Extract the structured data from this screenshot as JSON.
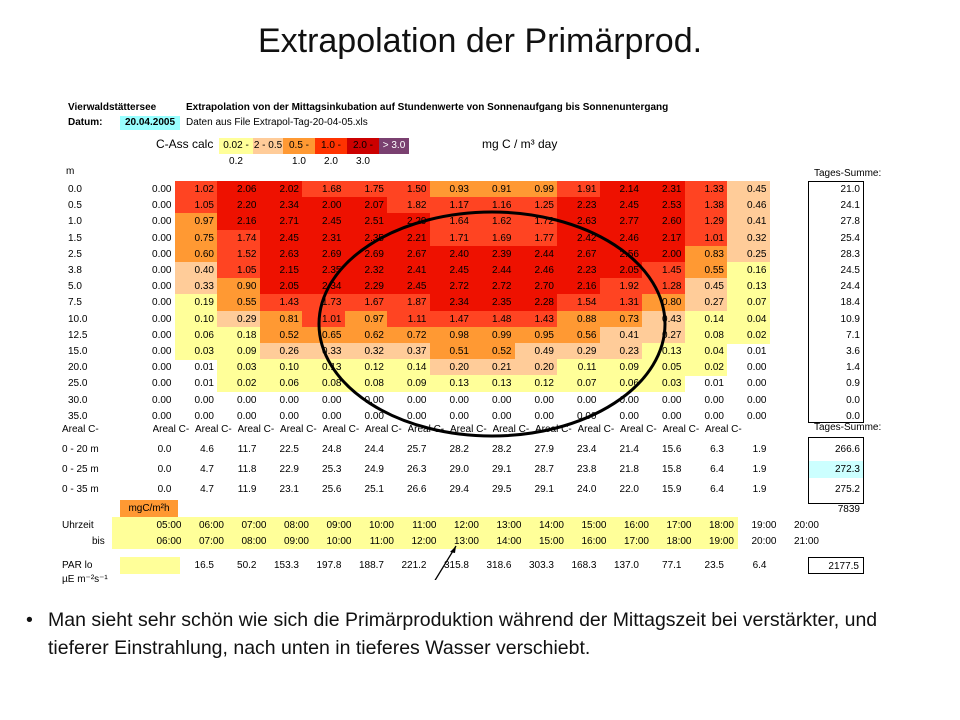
{
  "slide": {
    "title": "Extrapolation der Primärprod.",
    "bullet": "Man sieht sehr schön wie sich die Primärproduktion während der Mittagszeit bei verstärkter, und tieferer Einstrahlung, nach unten in tieferes Wasser verschiebt."
  },
  "sheet": {
    "lake_label": "Vierwaldstättersee",
    "title": "Extrapolation von der Mittagsinkubation auf Stundenwerte von Sonnenaufgang bis Sonnenuntergang",
    "date_label": "Datum:",
    "date_value": "20.04.2005",
    "file_label": "Daten aus File  Extrapol-Tag-20-04-05.xls",
    "cass_label": "C-Ass calc",
    "unit_label": "mg C / m³ day",
    "legend": [
      {
        "text": "0.02 - 0.2",
        "color": "#ffff99"
      },
      {
        "text": "2 - 0.5",
        "color": "#ffcc99"
      },
      {
        "text": "0.5 - 1.0",
        "color": "#ff9933"
      },
      {
        "text": "1.0 - 2.0",
        "color": "#ff3300"
      },
      {
        "text": "2.0 - 3.0",
        "color": "#cc0000"
      },
      {
        "text": "> 3.0",
        "color": "#7a4070"
      }
    ],
    "depth_header": "m",
    "tages_summe_label": "Tages-Summe:",
    "rows": [
      {
        "depth": "0.0",
        "vals": [
          "0.00",
          "1.02",
          "2.06",
          "2.02",
          "1.68",
          "1.75",
          "1.50",
          "0.93",
          "0.91",
          "0.99",
          "1.91",
          "2.14",
          "2.31",
          "1.33",
          "0.45"
        ],
        "sum": "21.0"
      },
      {
        "depth": "0.5",
        "vals": [
          "0.00",
          "1.05",
          "2.20",
          "2.34",
          "2.00",
          "2.07",
          "1.82",
          "1.17",
          "1.16",
          "1.25",
          "2.23",
          "2.45",
          "2.53",
          "1.38",
          "0.46"
        ],
        "sum": "24.1"
      },
      {
        "depth": "1.0",
        "vals": [
          "0.00",
          "0.97",
          "2.16",
          "2.71",
          "2.45",
          "2.51",
          "2.29",
          "1.64",
          "1.62",
          "1.72",
          "2.63",
          "2.77",
          "2.60",
          "1.29",
          "0.41"
        ],
        "sum": "27.8"
      },
      {
        "depth": "1.5",
        "vals": [
          "0.00",
          "0.75",
          "1.74",
          "2.45",
          "2.31",
          "2.35",
          "2.21",
          "1.71",
          "1.69",
          "1.77",
          "2.42",
          "2.46",
          "2.17",
          "1.01",
          "0.32"
        ],
        "sum": "25.4"
      },
      {
        "depth": "2.5",
        "vals": [
          "0.00",
          "0.60",
          "1.52",
          "2.63",
          "2.69",
          "2.69",
          "2.67",
          "2.40",
          "2.39",
          "2.44",
          "2.67",
          "2.56",
          "2.00",
          "0.83",
          "0.25"
        ],
        "sum": "28.3"
      },
      {
        "depth": "3.8",
        "vals": [
          "0.00",
          "0.40",
          "1.05",
          "2.15",
          "2.35",
          "2.32",
          "2.41",
          "2.45",
          "2.44",
          "2.46",
          "2.23",
          "2.05",
          "1.45",
          "0.55",
          "0.16"
        ],
        "sum": "24.5"
      },
      {
        "depth": "5.0",
        "vals": [
          "0.00",
          "0.33",
          "0.90",
          "2.05",
          "2.34",
          "2.29",
          "2.45",
          "2.72",
          "2.72",
          "2.70",
          "2.16",
          "1.92",
          "1.28",
          "0.45",
          "0.13"
        ],
        "sum": "24.4"
      },
      {
        "depth": "7.5",
        "vals": [
          "0.00",
          "0.19",
          "0.55",
          "1.43",
          "1.73",
          "1.67",
          "1.87",
          "2.34",
          "2.35",
          "2.28",
          "1.54",
          "1.31",
          "0.80",
          "0.27",
          "0.07"
        ],
        "sum": "18.4"
      },
      {
        "depth": "10.0",
        "vals": [
          "0.00",
          "0.10",
          "0.29",
          "0.81",
          "1.01",
          "0.97",
          "1.11",
          "1.47",
          "1.48",
          "1.43",
          "0.88",
          "0.73",
          "0.43",
          "0.14",
          "0.04"
        ],
        "sum": "10.9"
      },
      {
        "depth": "12.5",
        "vals": [
          "0.00",
          "0.06",
          "0.18",
          "0.52",
          "0.65",
          "0.62",
          "0.72",
          "0.98",
          "0.99",
          "0.95",
          "0.56",
          "0.41",
          "0.27",
          "0.08",
          "0.02"
        ],
        "sum": "7.1"
      },
      {
        "depth": "15.0",
        "vals": [
          "0.00",
          "0.03",
          "0.09",
          "0.26",
          "0.33",
          "0.32",
          "0.37",
          "0.51",
          "0.52",
          "0.49",
          "0.29",
          "0.23",
          "0.13",
          "0.04",
          "0.01"
        ],
        "sum": "3.6"
      },
      {
        "depth": "20.0",
        "vals": [
          "0.00",
          "0.01",
          "0.03",
          "0.10",
          "0.13",
          "0.12",
          "0.14",
          "0.20",
          "0.21",
          "0.20",
          "0.11",
          "0.09",
          "0.05",
          "0.02",
          "0.00"
        ],
        "sum": "1.4"
      },
      {
        "depth": "25.0",
        "vals": [
          "0.00",
          "0.01",
          "0.02",
          "0.06",
          "0.08",
          "0.08",
          "0.09",
          "0.13",
          "0.13",
          "0.12",
          "0.07",
          "0.06",
          "0.03",
          "0.01",
          "0.00"
        ],
        "sum": "0.9"
      },
      {
        "depth": "30.0",
        "vals": [
          "0.00",
          "0.00",
          "0.00",
          "0.00",
          "0.00",
          "0.00",
          "0.00",
          "0.00",
          "0.00",
          "0.00",
          "0.00",
          "0.00",
          "0.00",
          "0.00",
          "0.00"
        ],
        "sum": "0.0"
      },
      {
        "depth": "35.0",
        "vals": [
          "0.00",
          "0.00",
          "0.00",
          "0.00",
          "0.00",
          "0.00",
          "0.00",
          "0.00",
          "0.00",
          "0.00",
          "0.00",
          "0.00",
          "0.00",
          "0.00",
          "0.00"
        ],
        "sum": "0.0"
      }
    ],
    "areal_header": [
      "Areal C-A",
      "Areal C-Ass",
      "Areal C-Ass",
      "Areal C-Ass",
      "Areal C-Ass",
      "Areal C-Ass",
      "Areal C-Ass",
      "Areal C-Ass",
      "Areal C-Ass",
      "Areal C-Ass",
      "Areal C-Ass",
      "Areal C-Ass",
      "Areal C-Ass",
      "Areal C-Ass",
      "Areal C-Ass"
    ],
    "areal_tages_label": "Tages-Summe:",
    "areal_rows": [
      {
        "label": "0 - 20 m",
        "vals": [
          "0.0",
          "4.6",
          "11.7",
          "22.5",
          "24.8",
          "24.4",
          "25.7",
          "28.2",
          "28.2",
          "27.9",
          "23.4",
          "21.4",
          "15.6",
          "6.3",
          "1.9"
        ],
        "sum": "266.6"
      },
      {
        "label": "0 - 25 m",
        "vals": [
          "0.0",
          "4.7",
          "11.8",
          "22.9",
          "25.3",
          "24.9",
          "26.3",
          "29.0",
          "29.1",
          "28.7",
          "23.8",
          "21.8",
          "15.8",
          "6.4",
          "1.9"
        ],
        "sum": "272.3"
      },
      {
        "label": "0 - 35 m",
        "vals": [
          "0.0",
          "4.7",
          "11.9",
          "23.1",
          "25.6",
          "25.1",
          "26.6",
          "29.4",
          "29.5",
          "29.1",
          "24.0",
          "22.0",
          "15.9",
          "6.4",
          "1.9"
        ],
        "sum": "275.2"
      }
    ],
    "extra_sum": "7839",
    "unit_cell": "mgC/m²h",
    "uhrzeit_label": "Uhrzeit",
    "bis_label": "bis",
    "times_from": [
      "05:00",
      "06:00",
      "07:00",
      "08:00",
      "09:00",
      "10:00",
      "11:00",
      "12:00",
      "13:00",
      "14:00",
      "15:00",
      "16:00",
      "17:00",
      "18:00",
      "19:00",
      "20:00"
    ],
    "times_to": [
      "06:00",
      "07:00",
      "08:00",
      "09:00",
      "10:00",
      "11:00",
      "12:00",
      "13:00",
      "14:00",
      "15:00",
      "16:00",
      "17:00",
      "18:00",
      "19:00",
      "20:00",
      "21:00"
    ],
    "par_label": "PAR lo",
    "par_unit": "µE m⁻²s⁻¹",
    "par_vals": [
      "16.5",
      "50.2",
      "153.3",
      "197.8",
      "188.7",
      "221.2",
      "315.8",
      "318.6",
      "303.3",
      "168.3",
      "137.0",
      "77.1",
      "23.5",
      "6.4"
    ],
    "par_sum": "2177.5"
  }
}
